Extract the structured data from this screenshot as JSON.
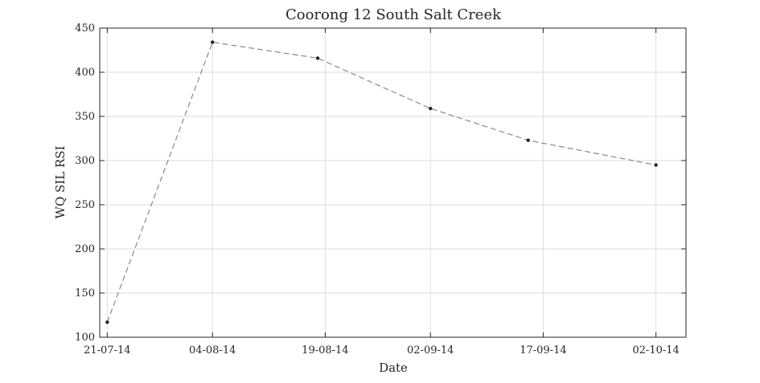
{
  "chart_data": {
    "type": "line",
    "title": "Coorong 12 South Salt Creek",
    "xlabel": "Date",
    "ylabel": "WQ SIL RSI",
    "ylim": [
      100,
      450
    ],
    "yticks": [
      100,
      150,
      200,
      250,
      300,
      350,
      400,
      450
    ],
    "xlim": [
      "2014-07-20",
      "2014-10-06"
    ],
    "xticks": [
      {
        "date": "2014-07-21",
        "label": "21-07-14"
      },
      {
        "date": "2014-08-04",
        "label": "04-08-14"
      },
      {
        "date": "2014-08-19",
        "label": "19-08-14"
      },
      {
        "date": "2014-09-02",
        "label": "02-09-14"
      },
      {
        "date": "2014-09-17",
        "label": "17-09-14"
      },
      {
        "date": "2014-10-02",
        "label": "02-10-14"
      }
    ],
    "grid": true,
    "series": [
      {
        "color": "#808080",
        "line_style": "dashed",
        "marker_color": "#262626",
        "x": [
          "2014-07-21",
          "2014-08-04",
          "2014-08-18",
          "2014-09-02",
          "2014-09-15",
          "2014-10-02"
        ],
        "y": [
          117,
          434,
          416,
          359,
          323,
          295
        ]
      }
    ]
  }
}
